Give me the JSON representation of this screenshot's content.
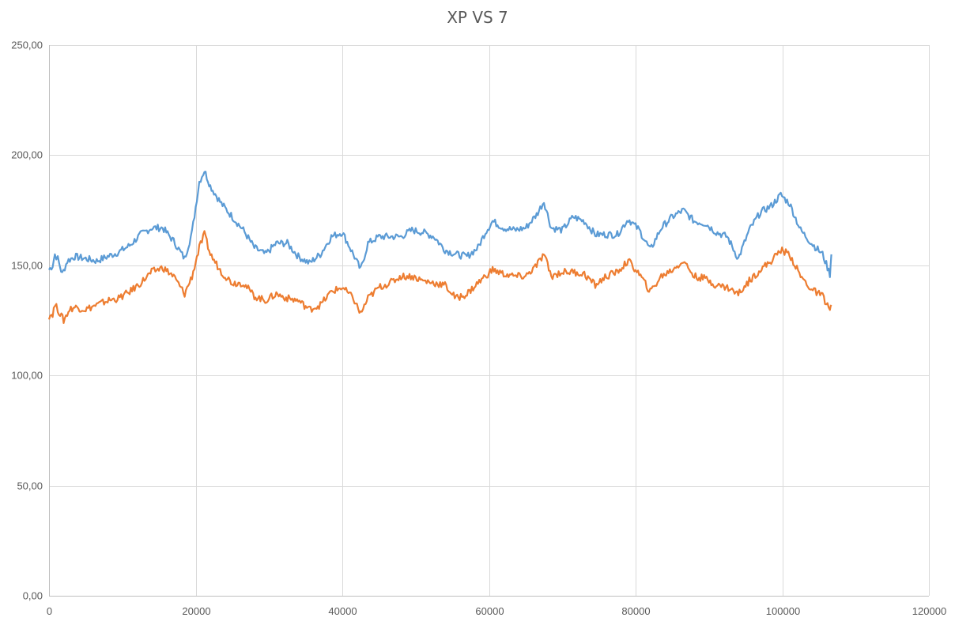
{
  "chart_data": {
    "type": "line",
    "title": "XP VS 7",
    "xlabel": "",
    "ylabel": "",
    "xlim": [
      0,
      120000
    ],
    "ylim": [
      0,
      250
    ],
    "x_ticks": [
      0,
      20000,
      40000,
      60000,
      80000,
      100000,
      120000
    ],
    "x_tick_labels": [
      "0",
      "20000",
      "40000",
      "60000",
      "80000",
      "100000",
      "120000"
    ],
    "y_ticks": [
      0,
      50,
      100,
      150,
      200,
      250
    ],
    "y_tick_labels": [
      "0,00",
      "50,00",
      "100,00",
      "150,00",
      "200,00",
      "250,00"
    ],
    "grid": true,
    "legend": "none",
    "series": [
      {
        "color": "#5B9BD5",
        "x": [
          0,
          500,
          800,
          1200,
          1800,
          2500,
          3500,
          5000,
          6500,
          8000,
          9500,
          11000,
          12500,
          14000,
          15500,
          17000,
          18500,
          19500,
          20500,
          21200,
          22000,
          23500,
          25000,
          26500,
          28000,
          29500,
          31000,
          32500,
          34000,
          35500,
          37000,
          38500,
          40000,
          41500,
          42500,
          43500,
          45000,
          46500,
          48000,
          49500,
          51000,
          52500,
          54000,
          55500,
          57000,
          58500,
          59500,
          60500,
          62000,
          63500,
          65000,
          66500,
          67500,
          68500,
          70000,
          71500,
          73000,
          74500,
          76000,
          77500,
          79000,
          80500,
          82000,
          83500,
          85000,
          86500,
          88000,
          89500,
          91000,
          92500,
          94000,
          95500,
          97000,
          98500,
          99800,
          101000,
          102500,
          104000,
          105500,
          106500,
          106700
        ],
        "values": [
          148,
          150,
          155,
          153,
          146,
          152,
          154,
          153,
          152,
          154,
          156,
          159,
          164,
          167,
          167,
          161,
          153,
          165,
          188,
          193,
          186,
          178,
          172,
          166,
          158,
          155,
          160,
          160,
          154,
          151,
          155,
          163,
          165,
          155,
          148,
          160,
          163,
          163,
          163,
          166,
          165,
          163,
          157,
          155,
          154,
          158,
          165,
          170,
          167,
          166,
          167,
          173,
          179,
          167,
          166,
          172,
          170,
          164,
          164,
          164,
          171,
          166,
          157,
          167,
          172,
          175,
          170,
          169,
          165,
          163,
          153,
          166,
          174,
          177,
          182,
          178,
          166,
          160,
          155,
          146,
          155
        ]
      },
      {
        "color": "#ED7D31",
        "x": [
          0,
          500,
          800,
          1200,
          2000,
          2800,
          3500,
          5000,
          6500,
          8000,
          9500,
          11000,
          12500,
          14000,
          15500,
          17000,
          18500,
          19500,
          20500,
          21200,
          22000,
          23500,
          25000,
          26500,
          28000,
          29500,
          31000,
          32500,
          34000,
          35500,
          37000,
          38500,
          40000,
          41500,
          42500,
          43500,
          45000,
          46500,
          48000,
          49500,
          51000,
          52500,
          54000,
          55500,
          57000,
          58500,
          59500,
          60500,
          62000,
          63500,
          65000,
          66500,
          67500,
          68500,
          70000,
          71500,
          73000,
          74500,
          76000,
          77500,
          79000,
          80500,
          82000,
          83500,
          85000,
          86500,
          88000,
          89500,
          91000,
          92500,
          94000,
          95500,
          97000,
          98500,
          99800,
          101000,
          102500,
          104000,
          105500,
          106500,
          106700
        ],
        "values": [
          127,
          128,
          132,
          130,
          125,
          130,
          131,
          130,
          132,
          134,
          135,
          138,
          142,
          147,
          149,
          145,
          137,
          145,
          158,
          164,
          155,
          147,
          142,
          142,
          136,
          134,
          137,
          135,
          134,
          130,
          132,
          138,
          140,
          135,
          128,
          135,
          140,
          142,
          145,
          145,
          143,
          142,
          141,
          135,
          137,
          142,
          145,
          148,
          146,
          145,
          145,
          150,
          155,
          145,
          147,
          147,
          146,
          141,
          145,
          147,
          152,
          146,
          138,
          145,
          148,
          152,
          145,
          144,
          141,
          140,
          137,
          143,
          148,
          152,
          157,
          155,
          145,
          139,
          136,
          130,
          132
        ]
      }
    ]
  }
}
